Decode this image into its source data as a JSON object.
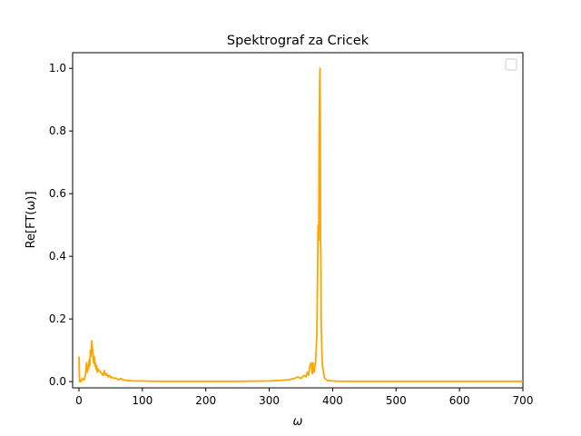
{
  "chart_data": {
    "type": "line",
    "title": "Spektrograf za Cricek",
    "xlabel": "ω",
    "ylabel": "Re[FT(ω)]",
    "xlim": [
      -10,
      700
    ],
    "ylim": [
      -0.02,
      1.05
    ],
    "xticks": [
      0,
      100,
      200,
      300,
      400,
      500,
      600,
      700
    ],
    "yticks": [
      0.0,
      0.2,
      0.4,
      0.6,
      0.8,
      1.0
    ],
    "xtick_labels": [
      "0",
      "100",
      "200",
      "300",
      "400",
      "500",
      "600",
      "700"
    ],
    "ytick_labels": [
      "0.0",
      "0.2",
      "0.4",
      "0.6",
      "0.8",
      "1.0"
    ],
    "grid": false,
    "legend": {
      "placement": "top-right",
      "entries": []
    },
    "series": [
      {
        "color": "#ffa500",
        "x": [
          0,
          1,
          2,
          3,
          5,
          8,
          10,
          12,
          13,
          14,
          15,
          16,
          17,
          18,
          19,
          20,
          21,
          22,
          23,
          24,
          25,
          26,
          27,
          28,
          29,
          30,
          32,
          34,
          36,
          38,
          40,
          42,
          44,
          46,
          48,
          50,
          52,
          55,
          58,
          60,
          63,
          66,
          70,
          75,
          80,
          90,
          100,
          120,
          150,
          200,
          250,
          300,
          320,
          330,
          340,
          345,
          350,
          355,
          358,
          360,
          362,
          364,
          366,
          368,
          369,
          370,
          371,
          372,
          373,
          374,
          375,
          376,
          377,
          378,
          378.5,
          379,
          379.5,
          380,
          380.5,
          381,
          381.5,
          382,
          383,
          384,
          385,
          386,
          387,
          388,
          390,
          392,
          395,
          400,
          410,
          450,
          500,
          600,
          700
        ],
        "y": [
          0.08,
          0.0,
          0.005,
          0.0,
          0.01,
          0.005,
          0.02,
          0.06,
          0.03,
          0.05,
          0.04,
          0.07,
          0.05,
          0.1,
          0.08,
          0.13,
          0.11,
          0.09,
          0.06,
          0.08,
          0.05,
          0.06,
          0.04,
          0.05,
          0.03,
          0.04,
          0.035,
          0.03,
          0.025,
          0.02,
          0.035,
          0.02,
          0.025,
          0.015,
          0.02,
          0.012,
          0.015,
          0.01,
          0.012,
          0.008,
          0.006,
          0.01,
          0.005,
          0.004,
          0.003,
          0.002,
          0.002,
          0.001,
          0.001,
          0.001,
          0.001,
          0.002,
          0.004,
          0.006,
          0.01,
          0.015,
          0.01,
          0.02,
          0.015,
          0.03,
          0.02,
          0.05,
          0.06,
          0.025,
          0.06,
          0.04,
          0.03,
          0.05,
          0.06,
          0.1,
          0.15,
          0.3,
          0.5,
          0.45,
          0.7,
          0.85,
          0.95,
          1.0,
          0.85,
          0.45,
          0.4,
          0.2,
          0.1,
          0.05,
          0.04,
          0.025,
          0.015,
          0.01,
          0.006,
          0.004,
          0.003,
          0.002,
          0.001,
          0.001,
          0.001,
          0.001,
          0.001
        ]
      }
    ]
  }
}
